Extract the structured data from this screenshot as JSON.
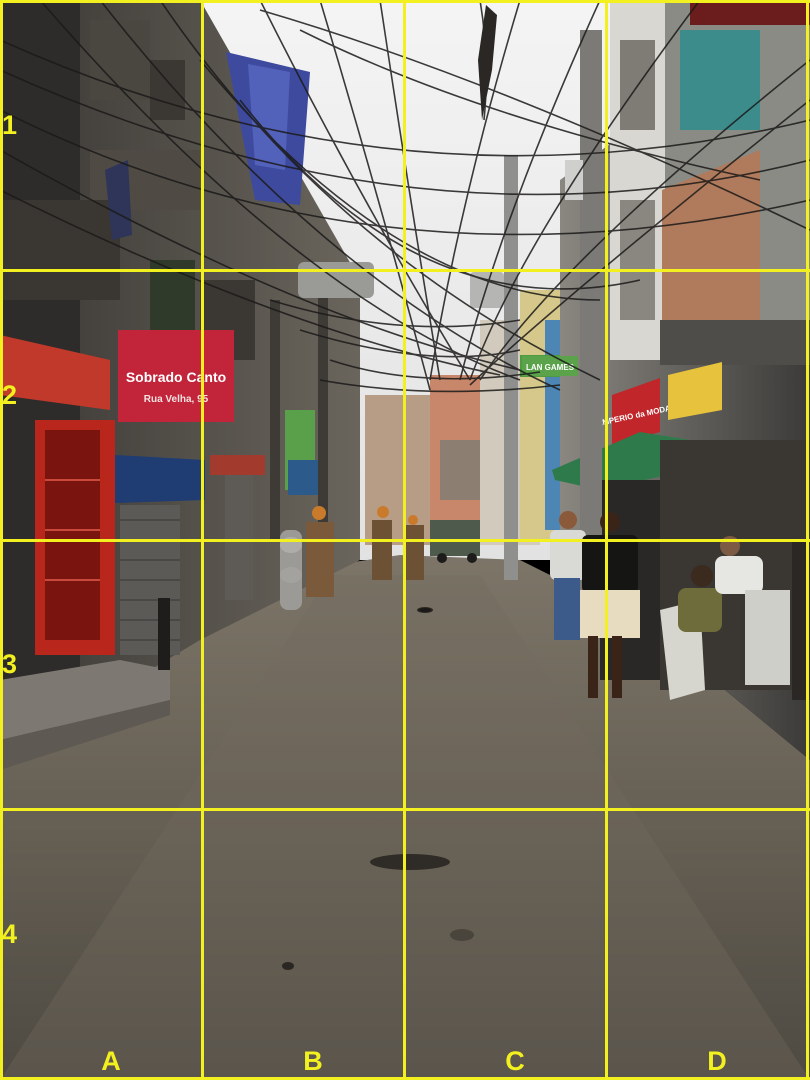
{
  "image": {
    "scene_description": "",
    "grid_overlay": {
      "line_color": "#f2f01e",
      "rows": [
        "1",
        "2",
        "3",
        "4"
      ],
      "columns": [
        "A",
        "B",
        "C",
        "D"
      ]
    },
    "signs": {
      "shop_sign_left_line1": "Sobrado Canto",
      "shop_sign_left_line2": "Rua Velha, 95",
      "shop_sign_right": "IMPERIO da MODA",
      "shop_sign_green": "LAN GAMES"
    }
  }
}
